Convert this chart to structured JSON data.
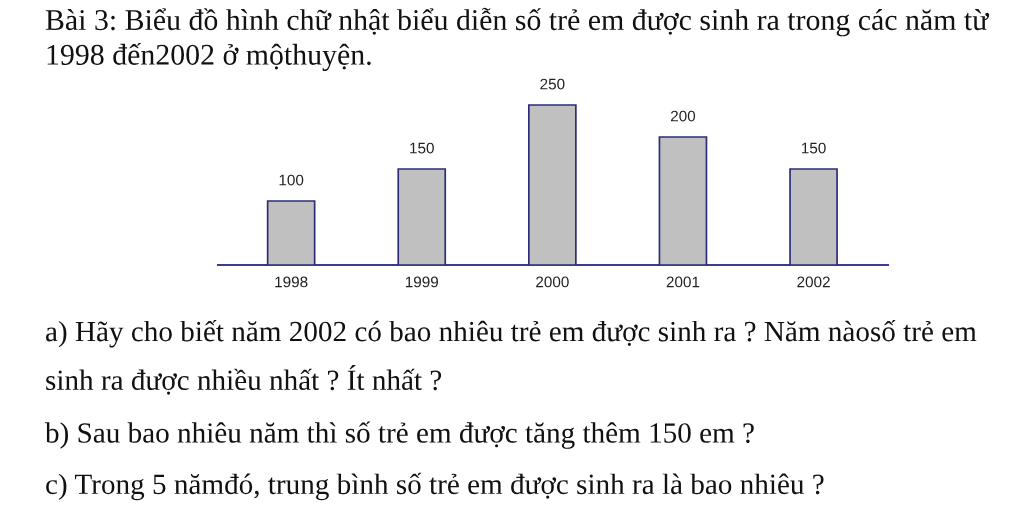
{
  "chart_data": {
    "type": "bar",
    "title": "Bài 3: Biểu đồ hình chữ nhật biểu diễn số trẻ em được sinh ra trong các năm từ 1998 đến2002 ở mộthuyện.",
    "categories": [
      "1998",
      "1999",
      "2000",
      "2001",
      "2002"
    ],
    "values": [
      100,
      150,
      250,
      200,
      150
    ],
    "color": "#c0c0c0",
    "data_labels": true,
    "tick_labels": "x",
    "annotations": [
      "a) Hãy cho biết năm 2002 có bao nhiêu trẻ em được sinh ra ? Năm nàosố trẻ em sinh ra được nhiều nhất ? Ít nhất ?",
      "b) Sau bao nhiêu năm thì số trẻ em được tăng thêm 150 em ?",
      "c) Trong 5 nămđó, trung bình số trẻ em được sinh ra là bao nhiêu ?"
    ]
  }
}
